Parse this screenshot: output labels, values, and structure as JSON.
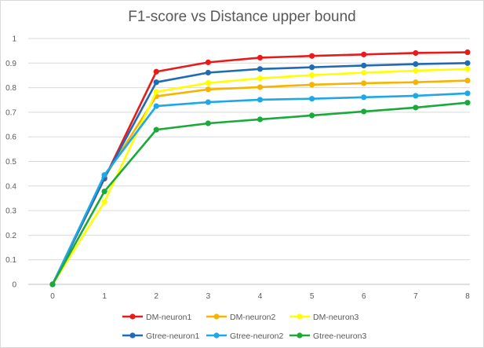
{
  "chart_data": {
    "type": "line",
    "title": "F1-score vs Distance upper bound",
    "xlabel": "",
    "ylabel": "",
    "x": [
      0,
      1,
      2,
      3,
      4,
      5,
      6,
      7,
      8
    ],
    "ylim": [
      0,
      1
    ],
    "yticks": [
      "0",
      "0.1",
      "0.2",
      "0.3",
      "0.4",
      "0.5",
      "0.6",
      "0.7",
      "0.8",
      "0.9",
      "1"
    ],
    "grid": "horizontal",
    "legend_position": "bottom",
    "series": [
      {
        "name": "DM-neuron1",
        "color": "#e81a1a",
        "values": [
          0,
          0.43,
          0.865,
          0.903,
          0.922,
          0.929,
          0.935,
          0.941,
          0.944
        ]
      },
      {
        "name": "DM-neuron2",
        "color": "#f5b400",
        "values": [
          0,
          0.435,
          0.765,
          0.793,
          0.802,
          0.812,
          0.818,
          0.822,
          0.829
        ]
      },
      {
        "name": "DM-neuron3",
        "color": "#ffff00",
        "values": [
          0,
          0.335,
          0.783,
          0.819,
          0.838,
          0.851,
          0.861,
          0.869,
          0.876
        ]
      },
      {
        "name": "Gtree-neuron1",
        "color": "#1f6bb5",
        "values": [
          0,
          0.432,
          0.822,
          0.861,
          0.876,
          0.883,
          0.89,
          0.896,
          0.9
        ]
      },
      {
        "name": "Gtree-neuron2",
        "color": "#1ea8e8",
        "values": [
          0,
          0.445,
          0.725,
          0.741,
          0.751,
          0.755,
          0.761,
          0.767,
          0.777
        ]
      },
      {
        "name": "Gtree-neuron3",
        "color": "#1aaa3a",
        "values": [
          0,
          0.378,
          0.629,
          0.655,
          0.671,
          0.687,
          0.703,
          0.719,
          0.739
        ]
      }
    ]
  }
}
